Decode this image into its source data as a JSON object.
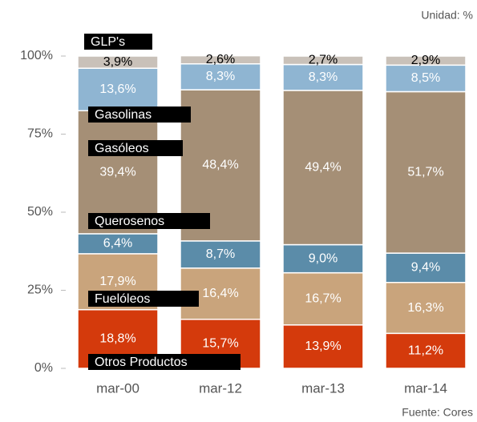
{
  "chart_data": {
    "type": "stacked_bar",
    "unit_note": "Unidad: %",
    "source": "Fuente: Cores",
    "categories": [
      "mar-00",
      "mar-12",
      "mar-13",
      "mar-14"
    ],
    "ylim": [
      0,
      100
    ],
    "yticks": [
      {
        "value": 0,
        "label": "0%"
      },
      {
        "value": 25,
        "label": "25%"
      },
      {
        "value": 50,
        "label": "50%"
      },
      {
        "value": 75,
        "label": "75%"
      },
      {
        "value": 100,
        "label": "100%"
      }
    ],
    "series": [
      {
        "name": "Otros Productos",
        "color": "#d43a0c",
        "label_color": "#ffffff",
        "values": [
          18.8,
          15.7,
          13.9,
          11.2
        ],
        "value_labels": [
          "18,8%",
          "15,7%",
          "13,9%",
          "11,2%"
        ]
      },
      {
        "name": "Fuelóleos",
        "color": "#c9a47c",
        "label_color": "#ffffff",
        "values": [
          17.9,
          16.4,
          16.7,
          16.3
        ],
        "value_labels": [
          "17,9%",
          "16,4%",
          "16,7%",
          "16,3%"
        ]
      },
      {
        "name": "Querosenos",
        "color": "#5b8ca9",
        "label_color": "#ffffff",
        "values": [
          6.4,
          8.7,
          9.0,
          9.4
        ],
        "value_labels": [
          "6,4%",
          "8,7%",
          "9,0%",
          "9,4%"
        ]
      },
      {
        "name": "Gasóleos",
        "color": "#a58f76",
        "label_color": "#ffffff",
        "values": [
          39.4,
          48.4,
          49.4,
          51.7
        ],
        "value_labels": [
          "39,4%",
          "48,4%",
          "49,4%",
          "51,7%"
        ]
      },
      {
        "name": "Gasolinas",
        "color": "#8fb5d2",
        "label_color": "#ffffff",
        "values": [
          13.6,
          8.3,
          8.3,
          8.5
        ],
        "value_labels": [
          "13,6%",
          "8,3%",
          "8,3%",
          "8,5%"
        ]
      },
      {
        "name": "GLP's",
        "color": "#c9c1b9",
        "label_color": "#000000",
        "values": [
          3.9,
          2.6,
          2.7,
          2.9
        ],
        "value_labels": [
          "3,9%",
          "2,6%",
          "2,7%",
          "2,9%"
        ]
      }
    ]
  }
}
